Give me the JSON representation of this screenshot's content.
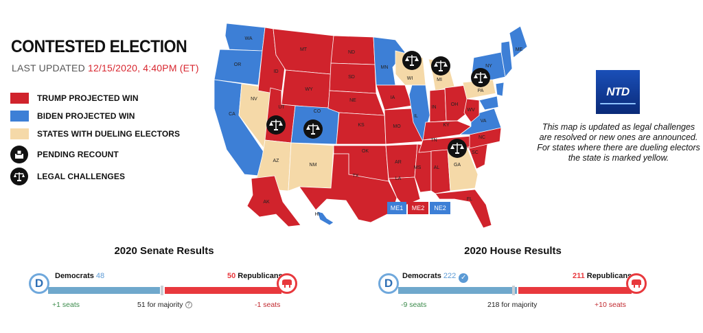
{
  "header": {
    "title": "CONTESTED ELECTION",
    "updated_prefix": "LAST UPDATED ",
    "updated_time": "12/15/2020, 4:40PM (ET)"
  },
  "legend": [
    {
      "label": "TRUMP PROJECTED WIN",
      "color": "#d0232c",
      "kind": "swatch"
    },
    {
      "label": "BIDEN PROJECTED WIN",
      "color": "#3d7fd6",
      "kind": "swatch"
    },
    {
      "label": "STATES WITH DUELING ELECTORS",
      "color": "#f5d9a8",
      "kind": "swatch"
    },
    {
      "label": "PENDING RECOUNT",
      "icon": "ballot-box-icon",
      "kind": "icon"
    },
    {
      "label": "LEGAL CHALLENGES",
      "icon": "scales-icon",
      "kind": "icon"
    }
  ],
  "colors": {
    "trump": "#d0232c",
    "biden": "#3d7fd6",
    "dueling": "#f5d9a8",
    "dem_bar": "#6fa8cc",
    "rep_bar": "#e8383d"
  },
  "map": {
    "state_labels": [
      "WA",
      "OR",
      "CA",
      "NV",
      "ID",
      "MT",
      "WY",
      "UT",
      "AZ",
      "CO",
      "NM",
      "ND",
      "SD",
      "NE",
      "KS",
      "OK",
      "TX",
      "MN",
      "IA",
      "MO",
      "AR",
      "LA",
      "WI",
      "IL",
      "MS",
      "MI",
      "IN",
      "KY",
      "TN",
      "AL",
      "OH",
      "GA",
      "FL",
      "SC",
      "NC",
      "VA",
      "WV",
      "PA",
      "NY",
      "ME",
      "AK",
      "HI"
    ],
    "legal_challenge_states": [
      "WI",
      "MI",
      "PA",
      "AZ",
      "NM",
      "GA"
    ],
    "district_boxes": [
      {
        "label": "ME1",
        "color": "#3d7fd6"
      },
      {
        "label": "ME2",
        "color": "#d0232c"
      },
      {
        "label": "NE2",
        "color": "#3d7fd6"
      }
    ]
  },
  "ntd": {
    "logo_text": "NTD"
  },
  "note": "This map is updated as legal challenges are resolved or new ones are announced. For states where there are dueling electors the state is marked yellow.",
  "senate": {
    "title": "2020 Senate Results",
    "dem_label": "Democrats",
    "dem_seats": "48",
    "rep_label": "Republicans",
    "rep_seats": "50",
    "dem_change": "+1 seats",
    "rep_change": "-1 seats",
    "majority": "51 for majority",
    "dem_share": 0.48,
    "rep_share": 0.5
  },
  "house": {
    "title": "2020 House Results",
    "dem_label": "Democrats",
    "dem_seats": "222",
    "rep_label": "Republicans",
    "rep_seats": "211",
    "dem_change": "-9 seats",
    "rep_change": "+10 seats",
    "majority": "218 for majority",
    "dem_share": 0.51,
    "rep_share": 0.485
  }
}
